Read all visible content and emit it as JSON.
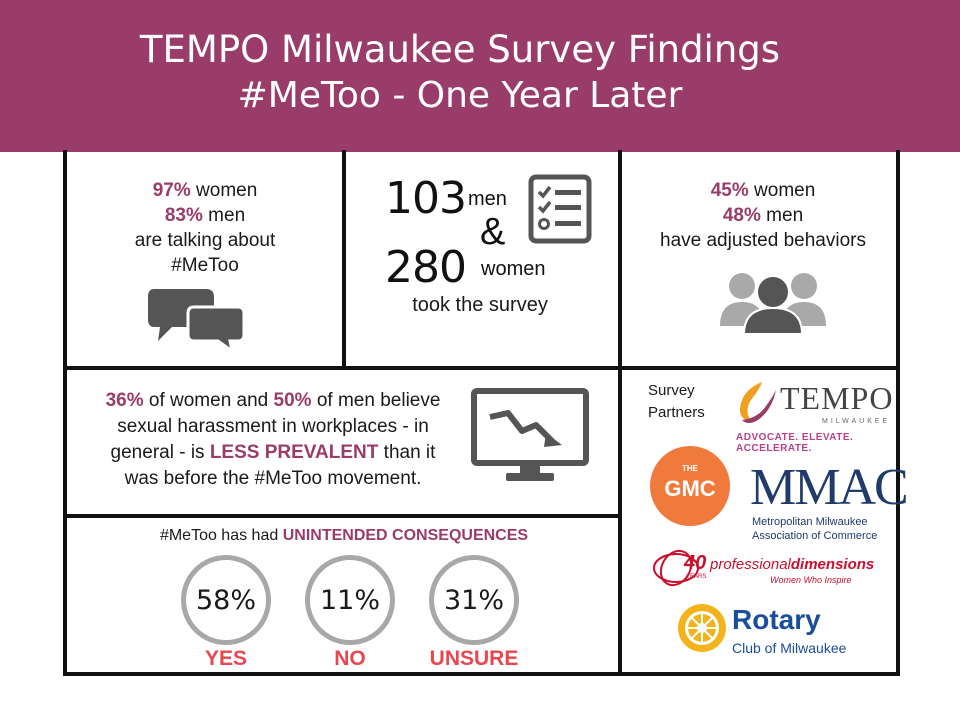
{
  "header": {
    "title": "TEMPO Milwaukee Survey Findings",
    "subtitle": "#MeToo - One Year Later"
  },
  "talking": {
    "women_pct": "97%",
    "women_label": "women",
    "men_pct": "83%",
    "men_label": "men",
    "line1": "are talking about",
    "line2": "#MeToo"
  },
  "survey": {
    "men_count": "103",
    "men_label": "men",
    "amp": "&",
    "women_count": "280",
    "women_label": "women",
    "took": "took the survey"
  },
  "adjusted": {
    "women_pct": "45%",
    "women_label": "women",
    "men_pct": "48%",
    "men_label": "men",
    "line": "have adjusted behaviors"
  },
  "prevalence": {
    "women_pct": "36%",
    "part1": "of women and",
    "men_pct": "50%",
    "part2": "of men believe",
    "line2": "sexual harassment in workplaces - in",
    "part3": "general - is",
    "highlight": "LESS PREVALENT",
    "part4": "than it",
    "line4": "was before the #MeToo movement."
  },
  "consequences": {
    "prefix": "#MeToo has had",
    "highlight": "UNINTENDED CONSEQUENCES",
    "items": [
      {
        "value": "58%",
        "label": "YES"
      },
      {
        "value": "11%",
        "label": "NO"
      },
      {
        "value": "31%",
        "label": "UNSURE"
      }
    ]
  },
  "partners": {
    "label_line1": "Survey",
    "label_line2": "Partners",
    "tempo": {
      "name": "TEMPO",
      "sub": "MILWAUKEE",
      "tagline": "ADVOCATE. ELEVATE. ACCELERATE."
    },
    "gmc": {
      "the": "THE",
      "name": "GMC"
    },
    "mmac": {
      "name": "MMAC",
      "line1": "Metropolitan Milwaukee",
      "line2": "Association of Commerce"
    },
    "pd": {
      "years": "40",
      "years_label": "YEARS",
      "name1": "professional",
      "name2": "dimensions",
      "tagline": "Women Who Inspire"
    },
    "rotary": {
      "name": "Rotary",
      "sub": "Club of Milwaukee"
    }
  },
  "colors": {
    "brand": "#9a3c6a",
    "answer": "#e8474f",
    "icon_gray": "#555555",
    "ring_gray": "#a8a8a8",
    "tempo_orange": "#f0a020",
    "mmac_navy": "#1f3a6b",
    "rotary_gold": "#f3b41b",
    "rotary_blue": "#1a4d9c",
    "pd_red": "#c8102e"
  }
}
